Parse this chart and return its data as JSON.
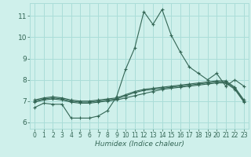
{
  "title": "",
  "xlabel": "Humidex (Indice chaleur)",
  "ylabel": "",
  "xlim": [
    -0.5,
    23.5
  ],
  "ylim": [
    5.7,
    11.6
  ],
  "yticks": [
    6,
    7,
    8,
    9,
    10,
    11
  ],
  "xticks": [
    0,
    1,
    2,
    3,
    4,
    5,
    6,
    7,
    8,
    9,
    10,
    11,
    12,
    13,
    14,
    15,
    16,
    17,
    18,
    19,
    20,
    21,
    22,
    23
  ],
  "bg_color": "#cff0eb",
  "grid_color": "#aaddd8",
  "line_color": "#336655",
  "line1_y": [
    6.7,
    6.9,
    6.85,
    6.85,
    6.2,
    6.2,
    6.2,
    6.3,
    6.55,
    7.2,
    8.5,
    9.5,
    11.2,
    10.6,
    11.3,
    10.1,
    9.3,
    8.6,
    8.3,
    8.0,
    8.3,
    7.7,
    8.0,
    7.7
  ],
  "line2_y": [
    6.95,
    7.05,
    7.1,
    7.05,
    6.95,
    6.9,
    6.9,
    6.95,
    7.0,
    7.05,
    7.15,
    7.25,
    7.35,
    7.45,
    7.55,
    7.6,
    7.65,
    7.7,
    7.75,
    7.8,
    7.85,
    7.85,
    7.55,
    6.95
  ],
  "line3_y": [
    7.0,
    7.1,
    7.15,
    7.1,
    7.0,
    6.95,
    6.95,
    7.0,
    7.05,
    7.1,
    7.25,
    7.4,
    7.5,
    7.55,
    7.6,
    7.65,
    7.7,
    7.75,
    7.8,
    7.85,
    7.9,
    7.9,
    7.6,
    7.0
  ],
  "line4_y": [
    7.05,
    7.15,
    7.2,
    7.15,
    7.05,
    7.0,
    7.0,
    7.05,
    7.1,
    7.15,
    7.3,
    7.45,
    7.55,
    7.6,
    7.65,
    7.7,
    7.75,
    7.8,
    7.85,
    7.9,
    7.95,
    7.95,
    7.65,
    7.05
  ]
}
